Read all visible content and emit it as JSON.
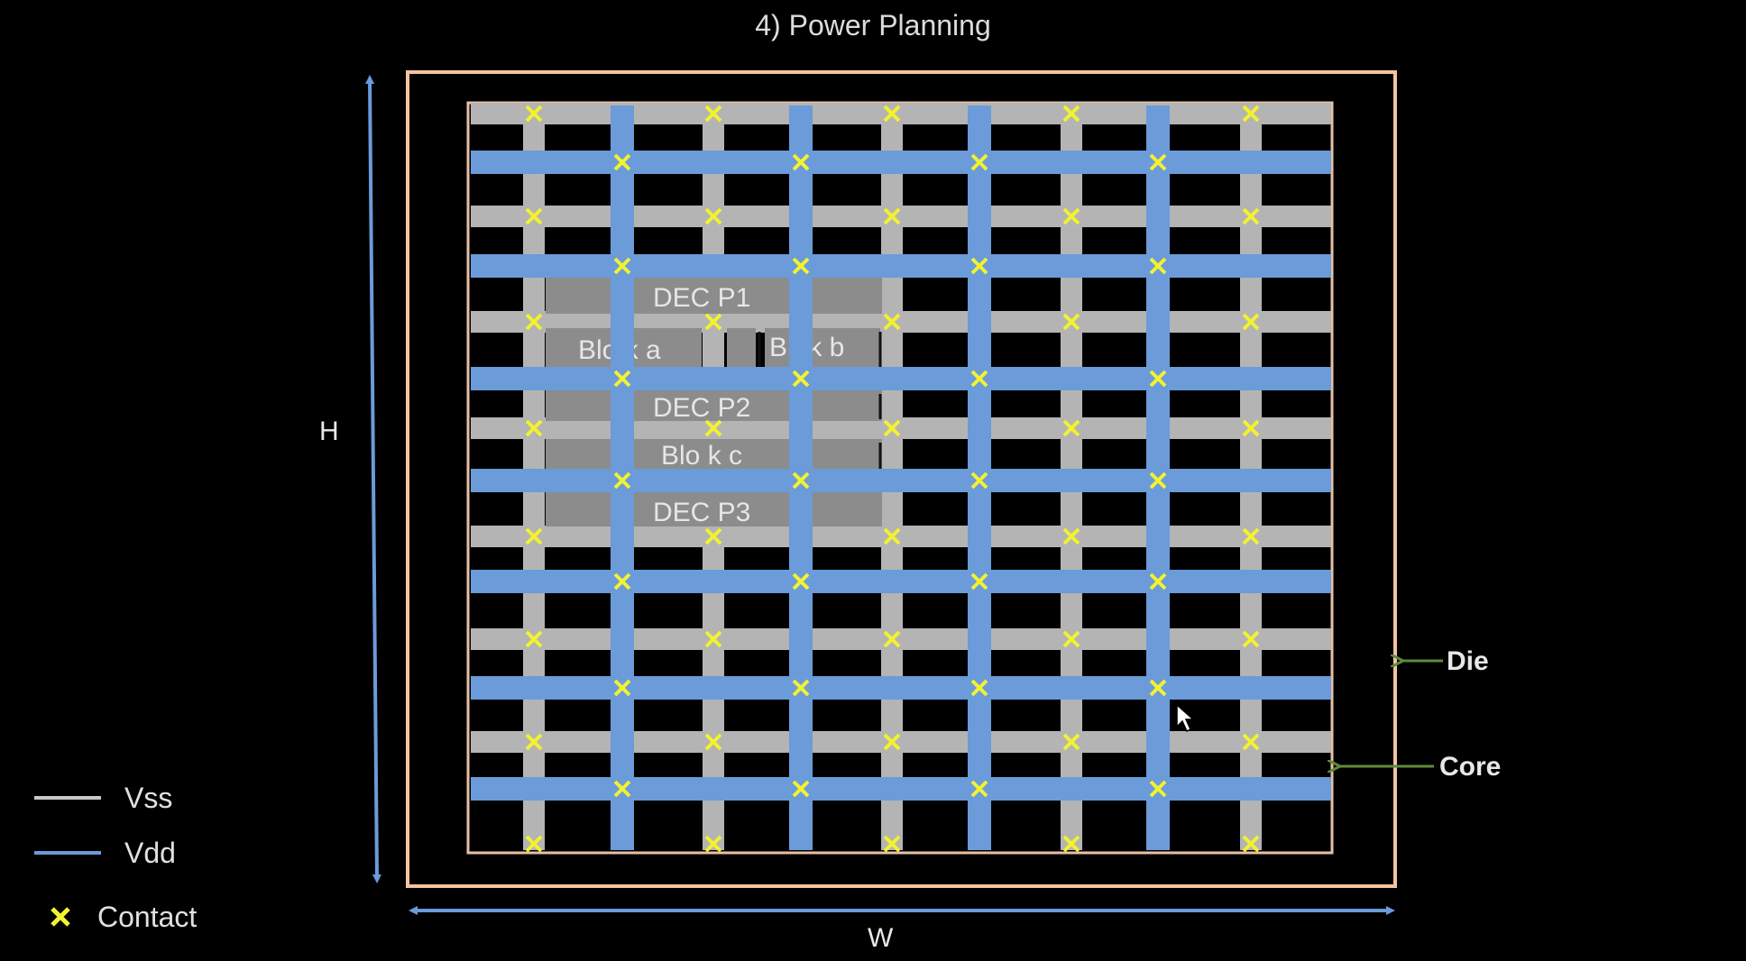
{
  "title": "4) Power Planning",
  "labels": {
    "height": "H",
    "width": "W",
    "die": "Die",
    "core": "Core"
  },
  "blocks": {
    "decap1": "DEC   P1",
    "block_a": "Blo   k a",
    "block_b": "B   ck b",
    "decap2": "DEC   P2",
    "block_c": "Blo   k c",
    "decap3": "DEC   P3"
  },
  "legend": [
    {
      "label": "Vss",
      "color": "#c8c8c8",
      "symbol": "line"
    },
    {
      "label": "Vdd",
      "color": "#6b9bd9",
      "symbol": "line"
    },
    {
      "label": "Contact",
      "color": "#f2f230",
      "symbol": "x"
    }
  ],
  "colors": {
    "vss": "#b4b4b4",
    "vdd": "#6b9bd9",
    "contact": "#f2f230",
    "die_border": "#f4c3a0",
    "core_border": "#e8c0a4",
    "arrow_dim": "#6b9bd9",
    "pointer_arrow": "#5e8a3c",
    "block_fill": "#8c8c8c"
  }
}
